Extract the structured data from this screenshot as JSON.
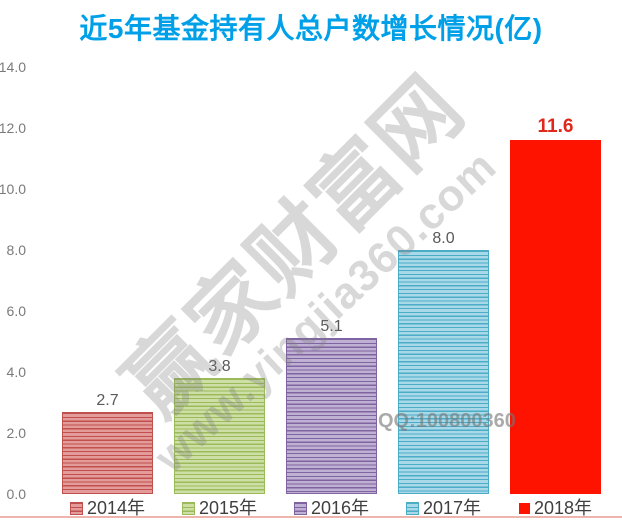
{
  "title": "近5年基金持有人总户数增长情况(亿)",
  "watermark": {
    "brand": "赢家财富网",
    "site": "www.yingjia360.com",
    "qq": "QQ:100800360"
  },
  "colors": {
    "title": "#00A0E9",
    "axis_label": "#7A7A7A",
    "legend_text": "#3F3F3F",
    "bottom_line": "#EDB5AE",
    "watermark": "rgba(127,127,127,0.30)",
    "watermark_qq": "rgba(118,118,118,0.62)"
  },
  "chart_data": {
    "type": "bar",
    "title": "近5年基金持有人总户数增长情况(亿)",
    "categories": [
      "2014年",
      "2015年",
      "2016年",
      "2017年",
      "2018年"
    ],
    "values": [
      2.7,
      3.8,
      5.1,
      8.0,
      11.6
    ],
    "value_labels": [
      "2.7",
      "3.8",
      "5.1",
      "8.0",
      "11.6"
    ],
    "value_label_colors": [
      "#595959",
      "#595959",
      "#595959",
      "#595959",
      "#DE281B"
    ],
    "xlabel": "",
    "ylabel": "",
    "ylim": [
      0,
      14
    ],
    "ytick_step": 2,
    "ytick_labels": [
      "0.0",
      "2.0",
      "4.0",
      "6.0",
      "8.0",
      "10.0",
      "12.0",
      "14.0"
    ],
    "grid": false,
    "axis_lines": false,
    "legend_position": "bottom",
    "series_styles": [
      {
        "name": "2014年",
        "pattern": "horizontal-stripes",
        "light": "#E49C9B",
        "dark": "#C0504D"
      },
      {
        "name": "2015年",
        "pattern": "horizontal-stripes",
        "light": "#CDDFA7",
        "dark": "#9BBB59"
      },
      {
        "name": "2016年",
        "pattern": "horizontal-stripes",
        "light": "#BFB1D3",
        "dark": "#8064A2"
      },
      {
        "name": "2017年",
        "pattern": "horizontal-stripes",
        "light": "#A9D9E8",
        "dark": "#4BACC6"
      },
      {
        "name": "2018年",
        "pattern": "solid",
        "light": "#FE1200",
        "dark": "#FE1200"
      }
    ]
  }
}
